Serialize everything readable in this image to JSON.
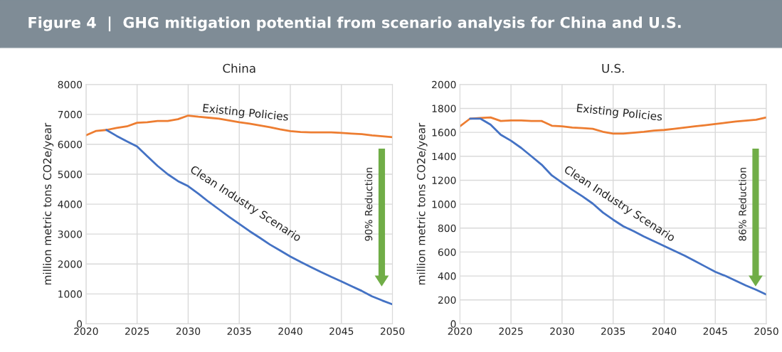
{
  "chart_data": [
    {
      "type": "line",
      "title": "China",
      "ylabel": "million metric tons CO2e/year",
      "annotations": [
        "Figure 4  |  GHG mitigation potential from scenario analysis for China and U.S.",
        "90% Reduction"
      ],
      "xlim": [
        2020,
        2050
      ],
      "xticks": [
        2020,
        2025,
        2030,
        2035,
        2040,
        2045,
        2050
      ],
      "ylim": [
        0,
        8000
      ],
      "yticks": [
        0,
        1000,
        2000,
        3000,
        4000,
        5000,
        6000,
        7000,
        8000
      ],
      "grid": true,
      "series": [
        {
          "name": "Existing Policies",
          "color": "#ed7d31",
          "x": [
            2020,
            2021,
            2022,
            2023,
            2024,
            2025,
            2026,
            2027,
            2028,
            2029,
            2030,
            2031,
            2032,
            2033,
            2034,
            2035,
            2036,
            2037,
            2038,
            2039,
            2040,
            2041,
            2042,
            2043,
            2044,
            2045,
            2046,
            2047,
            2048,
            2049,
            2050
          ],
          "values": [
            6300,
            6450,
            6480,
            6550,
            6600,
            6720,
            6740,
            6780,
            6780,
            6840,
            6960,
            6920,
            6890,
            6860,
            6800,
            6740,
            6690,
            6630,
            6570,
            6500,
            6440,
            6410,
            6400,
            6400,
            6400,
            6380,
            6360,
            6340,
            6300,
            6270,
            6240
          ]
        },
        {
          "name": "Clean Industry Scenario",
          "color": "#4472c4",
          "x": [
            2022,
            2023,
            2024,
            2025,
            2026,
            2027,
            2028,
            2029,
            2030,
            2031,
            2032,
            2033,
            2034,
            2035,
            2036,
            2037,
            2038,
            2039,
            2040,
            2041,
            2042,
            2043,
            2044,
            2045,
            2046,
            2047,
            2048,
            2049,
            2050
          ],
          "values": [
            6480,
            6280,
            6100,
            5930,
            5600,
            5280,
            5000,
            4770,
            4600,
            4350,
            4080,
            3830,
            3580,
            3340,
            3100,
            2880,
            2650,
            2450,
            2250,
            2070,
            1900,
            1730,
            1570,
            1420,
            1260,
            1100,
            920,
            780,
            650
          ]
        }
      ]
    },
    {
      "type": "line",
      "title": "U.S.",
      "ylabel": "million metric tons CO2e/year",
      "annotations": [
        "86% Reduction"
      ],
      "xlim": [
        2020,
        2050
      ],
      "xticks": [
        2020,
        2025,
        2030,
        2035,
        2040,
        2045,
        2050
      ],
      "ylim": [
        0,
        2000
      ],
      "yticks": [
        0,
        200,
        400,
        600,
        800,
        1000,
        1200,
        1400,
        1600,
        1800,
        2000
      ],
      "grid": true,
      "series": [
        {
          "name": "Existing Policies",
          "color": "#ed7d31",
          "x": [
            2020,
            2021,
            2022,
            2023,
            2024,
            2025,
            2026,
            2027,
            2028,
            2029,
            2030,
            2031,
            2032,
            2033,
            2034,
            2035,
            2036,
            2037,
            2038,
            2039,
            2040,
            2041,
            2042,
            2043,
            2044,
            2045,
            2046,
            2047,
            2048,
            2049,
            2050
          ],
          "values": [
            1650,
            1715,
            1720,
            1725,
            1695,
            1700,
            1700,
            1695,
            1695,
            1655,
            1650,
            1640,
            1635,
            1630,
            1605,
            1590,
            1590,
            1597,
            1605,
            1615,
            1620,
            1630,
            1640,
            1650,
            1660,
            1670,
            1680,
            1690,
            1698,
            1705,
            1725
          ]
        },
        {
          "name": "Clean Industry Scenario",
          "color": "#4472c4",
          "x": [
            2021,
            2022,
            2023,
            2024,
            2025,
            2026,
            2027,
            2028,
            2029,
            2030,
            2031,
            2032,
            2033,
            2034,
            2035,
            2036,
            2037,
            2038,
            2039,
            2040,
            2041,
            2042,
            2043,
            2044,
            2045,
            2046,
            2047,
            2048,
            2049,
            2050
          ],
          "values": [
            1715,
            1715,
            1665,
            1580,
            1530,
            1470,
            1400,
            1330,
            1240,
            1180,
            1120,
            1065,
            1005,
            930,
            870,
            815,
            775,
            730,
            690,
            650,
            610,
            570,
            525,
            480,
            435,
            400,
            360,
            320,
            285,
            245
          ]
        }
      ]
    }
  ]
}
